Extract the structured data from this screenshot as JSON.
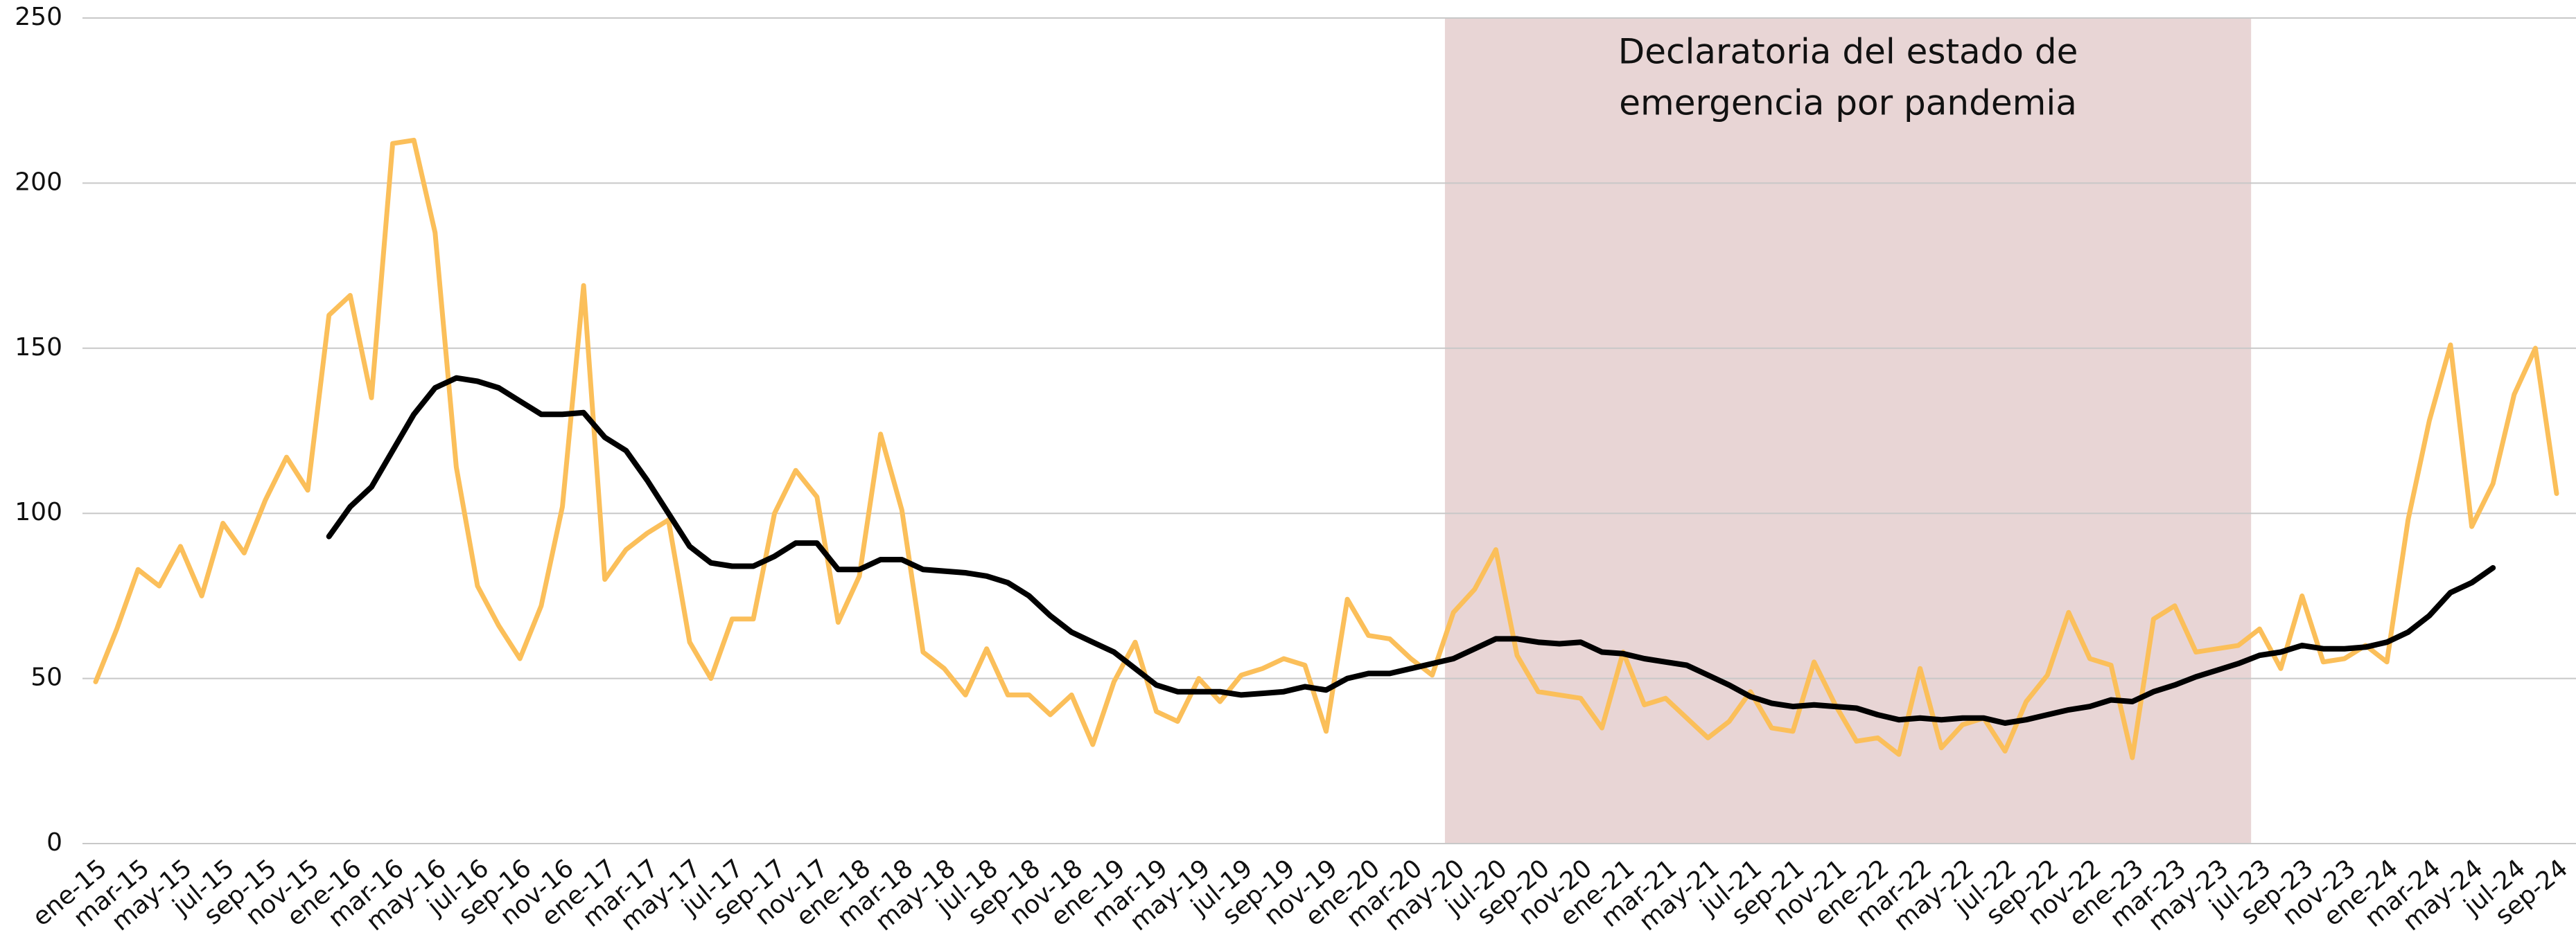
{
  "chart_data": {
    "type": "line",
    "categories": [
      "ene-15",
      null,
      "mar-15",
      null,
      "may-15",
      null,
      "jul-15",
      null,
      "sep-15",
      null,
      "nov-15",
      null,
      "ene-16",
      null,
      "mar-16",
      null,
      "may-16",
      null,
      "jul-16",
      null,
      "sep-16",
      null,
      "nov-16",
      null,
      "ene-17",
      null,
      "mar-17",
      null,
      "may-17",
      null,
      "jul-17",
      null,
      "sep-17",
      null,
      "nov-17",
      null,
      "ene-18",
      null,
      "mar-18",
      null,
      "may-18",
      null,
      "jul-18",
      null,
      "sep-18",
      null,
      "nov-18",
      null,
      "ene-19",
      null,
      "mar-19",
      null,
      "may-19",
      null,
      "jul-19",
      null,
      "sep-19",
      null,
      "nov-19",
      null,
      "ene-20",
      null,
      "mar-20",
      null,
      "may-20",
      null,
      "jul-20",
      null,
      "sep-20",
      null,
      "nov-20",
      null,
      "ene-21",
      null,
      "mar-21",
      null,
      "may-21",
      null,
      "jul-21",
      null,
      "sep-21",
      null,
      "nov-21",
      null,
      "ene-22",
      null,
      "mar-22",
      null,
      "may-22",
      null,
      "jul-22",
      null,
      "sep-22",
      null,
      "nov-22",
      null,
      "ene-23",
      null,
      "mar-23",
      null,
      "may-23",
      null,
      "jul-23",
      null,
      "sep-23",
      null,
      "nov-23",
      null,
      "ene-24",
      null,
      "mar-24",
      null,
      "may-24",
      null,
      "jul-24",
      null,
      "sep-24"
    ],
    "series": [
      {
        "color": "#fbbf5a",
        "values": [
          49,
          65,
          83,
          78,
          90,
          75,
          97,
          88,
          104,
          117,
          107,
          160,
          166,
          135,
          212,
          213,
          185,
          114,
          78,
          66,
          56,
          72,
          102,
          169,
          80,
          89,
          94,
          98,
          61,
          50,
          68,
          68,
          100,
          113,
          105,
          67,
          81,
          124,
          101,
          58,
          53,
          45,
          59,
          45,
          45,
          39,
          45,
          30,
          49,
          61,
          40,
          37,
          50,
          43,
          51,
          53,
          56,
          54,
          34,
          74,
          63,
          62,
          56,
          51,
          70,
          77,
          89,
          57,
          46,
          45,
          44,
          35,
          58,
          42,
          44,
          38,
          32,
          37,
          46,
          35,
          34,
          55,
          42,
          31,
          32,
          27,
          53,
          29,
          36,
          38,
          28,
          43,
          51,
          70,
          56,
          54,
          26,
          68,
          72,
          58,
          59,
          60,
          65,
          53,
          75,
          55,
          56,
          60,
          55,
          98,
          128,
          151,
          96,
          109,
          136,
          150,
          106
        ]
      },
      {
        "color": "#000000",
        "values": [
          null,
          null,
          null,
          null,
          null,
          null,
          null,
          null,
          null,
          null,
          null,
          93,
          102,
          108,
          119,
          130,
          138,
          141,
          140,
          138,
          134,
          130,
          130,
          130.5,
          123,
          119,
          110,
          100,
          90,
          85,
          84,
          84,
          87,
          91,
          91,
          83,
          83,
          86,
          86,
          83,
          82.5,
          82,
          81,
          79,
          75,
          69,
          64,
          61,
          58,
          53,
          48,
          46,
          46,
          46,
          45,
          45.5,
          46,
          47.5,
          46.5,
          50,
          51.5,
          51.5,
          53,
          54.5,
          56,
          59,
          62,
          62,
          61,
          60.5,
          61,
          58,
          57.5,
          56,
          55,
          54,
          51,
          48,
          44.5,
          42.5,
          41.5,
          42,
          41.5,
          41,
          39,
          37.5,
          38,
          37.5,
          38,
          38,
          36.5,
          37.5,
          39,
          40.5,
          41.5,
          43.5,
          43,
          46,
          48,
          50.5,
          52.5,
          54.5,
          57,
          58,
          60,
          59,
          59,
          59.5,
          61,
          64,
          69,
          76,
          79,
          83.5,
          null,
          null,
          null
        ]
      }
    ],
    "ylim": [
      0,
      250
    ],
    "yticks": [
      0,
      50,
      100,
      150,
      200,
      250
    ],
    "grid": true,
    "shaded_region": {
      "x_range": [
        63.6,
        101.6
      ],
      "color": "#e8d5d5",
      "label": [
        "Declaratoria del estado de",
        "emergencia por pandemia"
      ]
    }
  }
}
